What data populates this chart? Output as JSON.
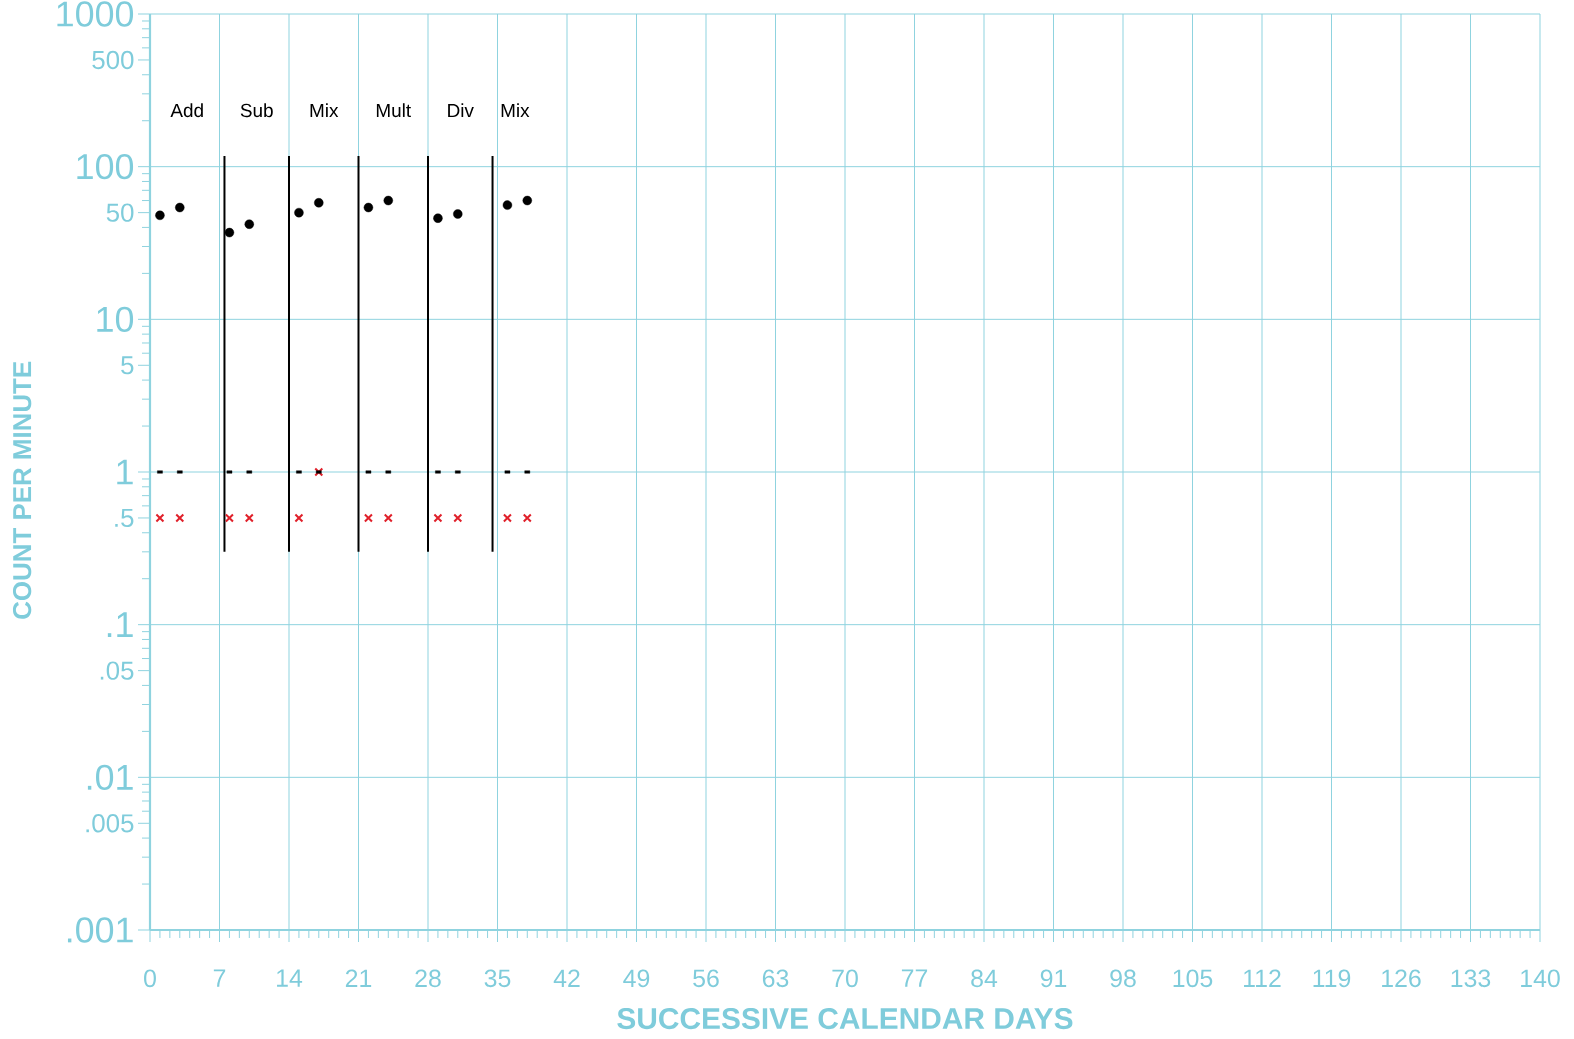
{
  "chart_data": {
    "type": "scatter",
    "xlabel": "SUCCESSIVE CALENDAR DAYS",
    "ylabel": "COUNT PER MINUTE",
    "log": "y",
    "grid": true,
    "x": [
      1,
      3,
      8,
      10,
      15,
      17,
      22,
      24,
      29,
      31,
      36,
      38
    ],
    "xlim": [
      0,
      140
    ],
    "ylim": [
      0.001,
      1000
    ],
    "xticks": [
      0,
      7,
      14,
      21,
      28,
      35,
      42,
      49,
      56,
      63,
      70,
      77,
      84,
      91,
      98,
      105,
      112,
      119,
      126,
      133,
      140,
      {
        "value": 1,
        "label": null
      },
      {
        "value": 2,
        "label": null
      },
      {
        "value": 3,
        "label": null
      },
      {
        "value": 4,
        "label": null
      },
      {
        "value": 5,
        "label": null
      },
      {
        "value": 6,
        "label": null
      },
      {
        "value": 8,
        "label": null
      },
      {
        "value": 9,
        "label": null
      },
      {
        "value": 10,
        "label": null
      },
      {
        "value": 11,
        "label": null
      },
      {
        "value": 12,
        "label": null
      },
      {
        "value": 13,
        "label": null
      },
      {
        "value": 15,
        "label": null
      },
      {
        "value": 16,
        "label": null
      },
      {
        "value": 17,
        "label": null
      },
      {
        "value": 18,
        "label": null
      },
      {
        "value": 19,
        "label": null
      },
      {
        "value": 20,
        "label": null
      },
      {
        "value": 22,
        "label": null
      },
      {
        "value": 23,
        "label": null
      },
      {
        "value": 24,
        "label": null
      },
      {
        "value": 25,
        "label": null
      },
      {
        "value": 26,
        "label": null
      },
      {
        "value": 27,
        "label": null
      },
      {
        "value": 29,
        "label": null
      },
      {
        "value": 30,
        "label": null
      },
      {
        "value": 31,
        "label": null
      },
      {
        "value": 32,
        "label": null
      },
      {
        "value": 33,
        "label": null
      },
      {
        "value": 34,
        "label": null
      },
      {
        "value": 36,
        "label": null
      },
      {
        "value": 37,
        "label": null
      },
      {
        "value": 38,
        "label": null
      },
      {
        "value": 39,
        "label": null
      },
      {
        "value": 40,
        "label": null
      },
      {
        "value": 41,
        "label": null
      },
      {
        "value": 43,
        "label": null
      },
      {
        "value": 44,
        "label": null
      },
      {
        "value": 45,
        "label": null
      },
      {
        "value": 46,
        "label": null
      },
      {
        "value": 47,
        "label": null
      },
      {
        "value": 48,
        "label": null
      },
      {
        "value": 50,
        "label": null
      },
      {
        "value": 51,
        "label": null
      },
      {
        "value": 52,
        "label": null
      },
      {
        "value": 53,
        "label": null
      },
      {
        "value": 54,
        "label": null
      },
      {
        "value": 55,
        "label": null
      },
      {
        "value": 57,
        "label": null
      },
      {
        "value": 58,
        "label": null
      },
      {
        "value": 59,
        "label": null
      },
      {
        "value": 60,
        "label": null
      },
      {
        "value": 61,
        "label": null
      },
      {
        "value": 62,
        "label": null
      },
      {
        "value": 64,
        "label": null
      },
      {
        "value": 65,
        "label": null
      },
      {
        "value": 66,
        "label": null
      },
      {
        "value": 67,
        "label": null
      },
      {
        "value": 68,
        "label": null
      },
      {
        "value": 69,
        "label": null
      },
      {
        "value": 71,
        "label": null
      },
      {
        "value": 72,
        "label": null
      },
      {
        "value": 73,
        "label": null
      },
      {
        "value": 74,
        "label": null
      },
      {
        "value": 75,
        "label": null
      },
      {
        "value": 76,
        "label": null
      },
      {
        "value": 78,
        "label": null
      },
      {
        "value": 79,
        "label": null
      },
      {
        "value": 80,
        "label": null
      },
      {
        "value": 81,
        "label": null
      },
      {
        "value": 82,
        "label": null
      },
      {
        "value": 83,
        "label": null
      },
      {
        "value": 85,
        "label": null
      },
      {
        "value": 86,
        "label": null
      },
      {
        "value": 87,
        "label": null
      },
      {
        "value": 88,
        "label": null
      },
      {
        "value": 89,
        "label": null
      },
      {
        "value": 90,
        "label": null
      },
      {
        "value": 92,
        "label": null
      },
      {
        "value": 93,
        "label": null
      },
      {
        "value": 94,
        "label": null
      },
      {
        "value": 95,
        "label": null
      },
      {
        "value": 96,
        "label": null
      },
      {
        "value": 97,
        "label": null
      },
      {
        "value": 99,
        "label": null
      },
      {
        "value": 100,
        "label": null
      },
      {
        "value": 101,
        "label": null
      },
      {
        "value": 102,
        "label": null
      },
      {
        "value": 103,
        "label": null
      },
      {
        "value": 104,
        "label": null
      },
      {
        "value": 106,
        "label": null
      },
      {
        "value": 107,
        "label": null
      },
      {
        "value": 108,
        "label": null
      },
      {
        "value": 109,
        "label": null
      },
      {
        "value": 110,
        "label": null
      },
      {
        "value": 111,
        "label": null
      },
      {
        "value": 113,
        "label": null
      },
      {
        "value": 114,
        "label": null
      },
      {
        "value": 115,
        "label": null
      },
      {
        "value": 116,
        "label": null
      },
      {
        "value": 117,
        "label": null
      },
      {
        "value": 118,
        "label": null
      },
      {
        "value": 120,
        "label": null
      },
      {
        "value": 121,
        "label": null
      },
      {
        "value": 122,
        "label": null
      },
      {
        "value": 123,
        "label": null
      },
      {
        "value": 124,
        "label": null
      },
      {
        "value": 125,
        "label": null
      },
      {
        "value": 127,
        "label": null
      },
      {
        "value": 128,
        "label": null
      },
      {
        "value": 129,
        "label": null
      },
      {
        "value": 130,
        "label": null
      },
      {
        "value": 131,
        "label": null
      },
      {
        "value": 132,
        "label": null
      },
      {
        "value": 134,
        "label": null
      },
      {
        "value": 135,
        "label": null
      },
      {
        "value": 136,
        "label": null
      },
      {
        "value": 137,
        "label": null
      },
      {
        "value": 138,
        "label": null
      },
      {
        "value": 139,
        "label": null
      }
    ],
    "yticks": [
      1000,
      500,
      100,
      50,
      10,
      5,
      1,
      {
        "value": 0.5,
        "label": ".5"
      },
      {
        "value": 0.1,
        "label": ".1"
      },
      {
        "value": 0.05,
        "label": ".05"
      },
      {
        "value": 0.01,
        "label": ".01"
      },
      {
        "value": 0.005,
        "label": ".005"
      },
      {
        "value": 0.001,
        "label": ".001"
      },
      {
        "value": 200,
        "label": null
      },
      {
        "value": 300,
        "label": null
      },
      {
        "value": 400,
        "label": null
      },
      {
        "value": 600,
        "label": null
      },
      {
        "value": 700,
        "label": null
      },
      {
        "value": 800,
        "label": null
      },
      {
        "value": 900,
        "label": null
      },
      {
        "value": 20,
        "label": null
      },
      {
        "value": 30,
        "label": null
      },
      {
        "value": 40,
        "label": null
      },
      {
        "value": 60,
        "label": null
      },
      {
        "value": 70,
        "label": null
      },
      {
        "value": 80,
        "label": null
      },
      {
        "value": 90,
        "label": null
      },
      {
        "value": 2,
        "label": null
      },
      {
        "value": 3,
        "label": null
      },
      {
        "value": 4,
        "label": null
      },
      {
        "value": 6,
        "label": null
      },
      {
        "value": 7,
        "label": null
      },
      {
        "value": 8,
        "label": null
      },
      {
        "value": 9,
        "label": null
      },
      {
        "value": 0.2,
        "label": null
      },
      {
        "value": 0.3,
        "label": null
      },
      {
        "value": 0.4,
        "label": null
      },
      {
        "value": 0.6,
        "label": null
      },
      {
        "value": 0.7,
        "label": null
      },
      {
        "value": 0.8,
        "label": null
      },
      {
        "value": 0.9,
        "label": null
      },
      {
        "value": 0.02,
        "label": null
      },
      {
        "value": 0.03,
        "label": null
      },
      {
        "value": 0.04,
        "label": null
      },
      {
        "value": 0.06,
        "label": null
      },
      {
        "value": 0.07,
        "label": null
      },
      {
        "value": 0.08,
        "label": null
      },
      {
        "value": 0.09,
        "label": null
      },
      {
        "value": 0.002,
        "label": null
      },
      {
        "value": 0.003,
        "label": null
      },
      {
        "value": 0.004,
        "label": null
      },
      {
        "value": 0.006,
        "label": null
      },
      {
        "value": 0.007,
        "label": null
      },
      {
        "value": 0.008,
        "label": null
      },
      {
        "value": 0.009,
        "label": null
      }
    ],
    "series": [
      {
        "color": "#000000",
        "marker": "circle",
        "values": [
          48,
          54,
          37,
          42,
          50,
          58,
          54,
          60,
          46,
          49,
          56,
          60
        ]
      },
      {
        "color": "#e0202a",
        "marker": "cross",
        "values": [
          0.5,
          0.5,
          0.5,
          0.5,
          0.5,
          1,
          0.5,
          0.5,
          0.5,
          0.5,
          0.5,
          0.5
        ]
      },
      {
        "color": "#000000",
        "marker": "square",
        "values": [
          1,
          1,
          1,
          1,
          1,
          1,
          1,
          1,
          1,
          1,
          1,
          1
        ]
      }
    ],
    "ref_lines": [
      {
        "axis": "x",
        "value": 7.5,
        "color": "#000000"
      },
      {
        "axis": "x",
        "value": 14,
        "color": "#000000"
      },
      {
        "axis": "x",
        "value": 21,
        "color": "#000000"
      },
      {
        "axis": "x",
        "value": 28,
        "color": "#000000"
      },
      {
        "axis": "x",
        "value": 34.5,
        "color": "#000000"
      }
    ],
    "annotations": [
      "Add",
      "Sub",
      "Mix",
      "Mult",
      "Div",
      "Mix"
    ]
  }
}
